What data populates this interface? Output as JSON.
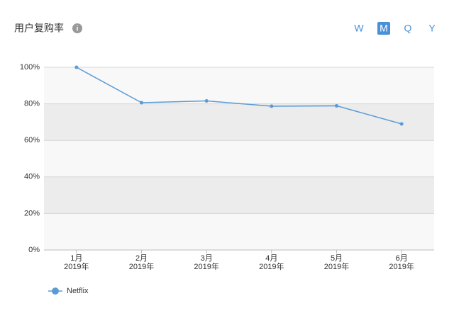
{
  "chart_data": {
    "type": "line",
    "title": "用户复购率",
    "controls": {
      "periods": [
        "W",
        "M",
        "Q",
        "Y"
      ],
      "selected": "M"
    },
    "categories": [
      "1月\n2019年",
      "2月\n2019年",
      "3月\n2019年",
      "4月\n2019年",
      "5月\n2019年",
      "6月\n2019年"
    ],
    "series": [
      {
        "name": "Netflix",
        "color": "#5b9bd5",
        "values": [
          100,
          80.6,
          81.6,
          78.7,
          78.9,
          69.0
        ]
      }
    ],
    "ylim": [
      0,
      100
    ],
    "yticks": [
      {
        "value": 0,
        "label": "0%"
      },
      {
        "value": 20,
        "label": "20%"
      },
      {
        "value": 40,
        "label": "40%"
      },
      {
        "value": 60,
        "label": "60%"
      },
      {
        "value": 80,
        "label": "80%"
      },
      {
        "value": 100,
        "label": "100%"
      }
    ],
    "grid": "banded",
    "legend": "bottom-left"
  }
}
